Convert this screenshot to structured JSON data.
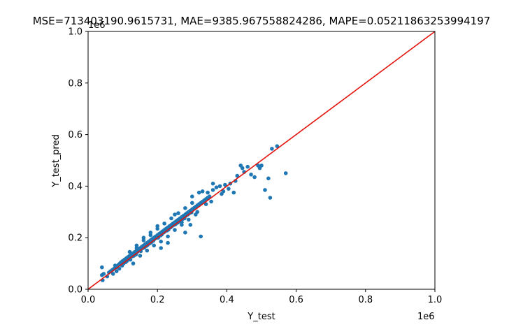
{
  "chart_data": {
    "type": "scatter",
    "title": "MSE=713403190.9615731, MAE=9385.967558824286, MAPE=0.05211863253994197",
    "xlabel": "Y_test",
    "ylabel": "Y_test_pred",
    "xlim": [
      0,
      1000000
    ],
    "ylim": [
      0,
      1000000
    ],
    "x_offset_label": "1e6",
    "y_offset_label": "1e6",
    "x_ticks": [
      {
        "value": 0,
        "label": "0.0"
      },
      {
        "value": 200000,
        "label": "0.2"
      },
      {
        "value": 400000,
        "label": "0.4"
      },
      {
        "value": 600000,
        "label": "0.6"
      },
      {
        "value": 800000,
        "label": "0.8"
      },
      {
        "value": 1000000,
        "label": "1.0"
      }
    ],
    "y_ticks": [
      {
        "value": 0,
        "label": "0.0"
      },
      {
        "value": 200000,
        "label": "0.2"
      },
      {
        "value": 400000,
        "label": "0.4"
      },
      {
        "value": 600000,
        "label": "0.6"
      },
      {
        "value": 800000,
        "label": "0.8"
      },
      {
        "value": 1000000,
        "label": "1.0"
      }
    ],
    "grid": false,
    "point_color": "#1f77b4",
    "line_color": "#e3140e",
    "reference_line": {
      "x": [
        0,
        1000000
      ],
      "y": [
        0,
        1000000
      ]
    },
    "points": [
      [
        40000,
        85000
      ],
      [
        40000,
        55000
      ],
      [
        42000,
        35000
      ],
      [
        45000,
        60000
      ],
      [
        55000,
        50000
      ],
      [
        60000,
        65000
      ],
      [
        65000,
        70000
      ],
      [
        70000,
        75000
      ],
      [
        72000,
        60000
      ],
      [
        75000,
        80000
      ],
      [
        78000,
        92000
      ],
      [
        80000,
        85000
      ],
      [
        82000,
        70000
      ],
      [
        85000,
        90000
      ],
      [
        88000,
        95000
      ],
      [
        90000,
        80000
      ],
      [
        92000,
        100000
      ],
      [
        95000,
        105000
      ],
      [
        98000,
        92000
      ],
      [
        100000,
        110000
      ],
      [
        102000,
        100000
      ],
      [
        105000,
        115000
      ],
      [
        108000,
        105000
      ],
      [
        110000,
        120000
      ],
      [
        112000,
        110000
      ],
      [
        115000,
        125000
      ],
      [
        118000,
        118000
      ],
      [
        120000,
        130000
      ],
      [
        122000,
        115000
      ],
      [
        125000,
        135000
      ],
      [
        128000,
        128000
      ],
      [
        130000,
        140000
      ],
      [
        132000,
        130000
      ],
      [
        135000,
        145000
      ],
      [
        138000,
        135000
      ],
      [
        140000,
        150000
      ],
      [
        142000,
        145000
      ],
      [
        145000,
        155000
      ],
      [
        148000,
        150000
      ],
      [
        150000,
        160000
      ],
      [
        152000,
        148000
      ],
      [
        155000,
        165000
      ],
      [
        158000,
        160000
      ],
      [
        160000,
        170000
      ],
      [
        162000,
        162000
      ],
      [
        165000,
        175000
      ],
      [
        168000,
        168000
      ],
      [
        170000,
        180000
      ],
      [
        172000,
        172000
      ],
      [
        175000,
        185000
      ],
      [
        178000,
        178000
      ],
      [
        180000,
        190000
      ],
      [
        182000,
        182000
      ],
      [
        185000,
        195000
      ],
      [
        188000,
        188000
      ],
      [
        190000,
        200000
      ],
      [
        192000,
        195000
      ],
      [
        195000,
        205000
      ],
      [
        198000,
        200000
      ],
      [
        200000,
        210000
      ],
      [
        202000,
        200000
      ],
      [
        205000,
        215000
      ],
      [
        208000,
        208000
      ],
      [
        210000,
        220000
      ],
      [
        212000,
        212000
      ],
      [
        215000,
        225000
      ],
      [
        218000,
        220000
      ],
      [
        220000,
        230000
      ],
      [
        222000,
        225000
      ],
      [
        225000,
        235000
      ],
      [
        228000,
        228000
      ],
      [
        230000,
        240000
      ],
      [
        232000,
        232000
      ],
      [
        235000,
        245000
      ],
      [
        238000,
        240000
      ],
      [
        240000,
        250000
      ],
      [
        242000,
        245000
      ],
      [
        245000,
        255000
      ],
      [
        248000,
        250000
      ],
      [
        250000,
        260000
      ],
      [
        252000,
        252000
      ],
      [
        255000,
        265000
      ],
      [
        258000,
        258000
      ],
      [
        260000,
        270000
      ],
      [
        262000,
        262000
      ],
      [
        265000,
        275000
      ],
      [
        268000,
        268000
      ],
      [
        270000,
        280000
      ],
      [
        272000,
        272000
      ],
      [
        275000,
        285000
      ],
      [
        278000,
        275000
      ],
      [
        280000,
        290000
      ],
      [
        282000,
        285000
      ],
      [
        285000,
        295000
      ],
      [
        288000,
        290000
      ],
      [
        290000,
        300000
      ],
      [
        292000,
        295000
      ],
      [
        295000,
        305000
      ],
      [
        298000,
        298000
      ],
      [
        300000,
        310000
      ],
      [
        305000,
        315000
      ],
      [
        310000,
        320000
      ],
      [
        315000,
        325000
      ],
      [
        320000,
        330000
      ],
      [
        325000,
        335000
      ],
      [
        330000,
        340000
      ],
      [
        335000,
        345000
      ],
      [
        340000,
        350000
      ],
      [
        345000,
        355000
      ],
      [
        350000,
        360000
      ],
      [
        130000,
        100000
      ],
      [
        150000,
        130000
      ],
      [
        170000,
        150000
      ],
      [
        190000,
        170000
      ],
      [
        210000,
        185000
      ],
      [
        230000,
        205000
      ],
      [
        250000,
        230000
      ],
      [
        270000,
        250000
      ],
      [
        290000,
        270000
      ],
      [
        310000,
        290000
      ],
      [
        120000,
        145000
      ],
      [
        140000,
        170000
      ],
      [
        160000,
        190000
      ],
      [
        180000,
        210000
      ],
      [
        200000,
        235000
      ],
      [
        220000,
        255000
      ],
      [
        240000,
        275000
      ],
      [
        260000,
        295000
      ],
      [
        280000,
        315000
      ],
      [
        300000,
        335000
      ],
      [
        210000,
        160000
      ],
      [
        230000,
        180000
      ],
      [
        280000,
        220000
      ],
      [
        295000,
        250000
      ],
      [
        325000,
        205000
      ],
      [
        300000,
        360000
      ],
      [
        320000,
        375000
      ],
      [
        330000,
        380000
      ],
      [
        360000,
        410000
      ],
      [
        345000,
        375000
      ],
      [
        385000,
        370000
      ],
      [
        395000,
        405000
      ],
      [
        405000,
        390000
      ],
      [
        410000,
        410000
      ],
      [
        420000,
        375000
      ],
      [
        425000,
        420000
      ],
      [
        430000,
        440000
      ],
      [
        440000,
        480000
      ],
      [
        445000,
        470000
      ],
      [
        450000,
        455000
      ],
      [
        460000,
        475000
      ],
      [
        470000,
        445000
      ],
      [
        480000,
        435000
      ],
      [
        490000,
        480000
      ],
      [
        495000,
        470000
      ],
      [
        500000,
        480000
      ],
      [
        510000,
        385000
      ],
      [
        520000,
        430000
      ],
      [
        525000,
        355000
      ],
      [
        530000,
        545000
      ],
      [
        545000,
        555000
      ],
      [
        570000,
        450000
      ],
      [
        250000,
        290000
      ],
      [
        200000,
        245000
      ],
      [
        180000,
        220000
      ],
      [
        160000,
        200000
      ],
      [
        140000,
        160000
      ],
      [
        360000,
        385000
      ],
      [
        370000,
        395000
      ],
      [
        380000,
        400000
      ],
      [
        390000,
        380000
      ],
      [
        340000,
        330000
      ],
      [
        355000,
        340000
      ],
      [
        315000,
        300000
      ],
      [
        270000,
        260000
      ]
    ]
  }
}
